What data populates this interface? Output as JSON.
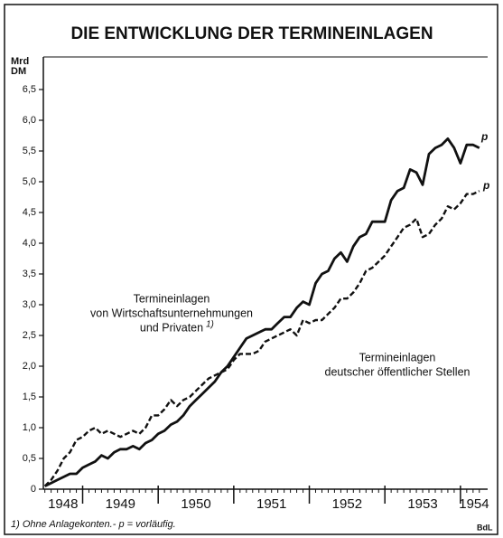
{
  "chart_data": {
    "type": "line",
    "title": "DIE ENTWICKLUNG DER TERMINEINLAGEN",
    "y_label": [
      "Mrd",
      "DM"
    ],
    "footnote": "1) Ohne Anlagekonten.- p = vorläufig.",
    "source": "BdL",
    "annotations": [
      {
        "lines": [
          "Termineinlagen",
          "von Wirtschaftsunternehmungen",
          "und Privaten"
        ],
        "marker": "1)"
      },
      {
        "lines": [
          "Termineinlagen",
          "deutscher öffentlicher Stellen"
        ]
      }
    ],
    "end_labels": [
      "p",
      "p"
    ],
    "xlim": [
      1948.48,
      1954.36
    ],
    "xticks": [
      1948,
      1949,
      1950,
      1951,
      1952,
      1953,
      1954
    ],
    "ylim": [
      0,
      6.5
    ],
    "yticks": [
      0,
      {
        "value": 0.5,
        "label": "0,5"
      },
      {
        "value": 1,
        "label": "1,0"
      },
      {
        "value": 1.5,
        "label": "1,5"
      },
      {
        "value": 2,
        "label": "2,0"
      },
      {
        "value": 2.5,
        "label": "2,5"
      },
      {
        "value": 3,
        "label": "3,0"
      },
      {
        "value": 3.5,
        "label": "3,5"
      },
      {
        "value": 4,
        "label": "4,0"
      },
      {
        "value": 4.5,
        "label": "4,5"
      },
      {
        "value": 5,
        "label": "5,0"
      },
      {
        "value": 5.5,
        "label": "5,5"
      },
      {
        "value": 6,
        "label": "6,0"
      },
      {
        "value": 6.5,
        "label": "6,5"
      }
    ],
    "grid": false,
    "x": [
      1948.5,
      1948.583,
      1948.667,
      1948.75,
      1948.833,
      1948.917,
      1949,
      1949.083,
      1949.167,
      1949.25,
      1949.333,
      1949.417,
      1949.5,
      1949.583,
      1949.667,
      1949.75,
      1949.833,
      1949.917,
      1950,
      1950.083,
      1950.167,
      1950.25,
      1950.333,
      1950.417,
      1950.5,
      1950.583,
      1950.667,
      1950.75,
      1950.833,
      1950.917,
      1951,
      1951.083,
      1951.167,
      1951.25,
      1951.333,
      1951.417,
      1951.5,
      1951.583,
      1951.667,
      1951.75,
      1951.833,
      1951.917,
      1952,
      1952.083,
      1952.167,
      1952.25,
      1952.333,
      1952.417,
      1952.5,
      1952.583,
      1952.667,
      1952.75,
      1952.833,
      1952.917,
      1953,
      1953.083,
      1953.167,
      1953.25,
      1953.333,
      1953.417,
      1953.5,
      1953.583,
      1953.667,
      1953.75,
      1953.833,
      1953.917,
      1954,
      1954.083,
      1954.167,
      1954.25
    ],
    "series": [
      {
        "color": "#111111",
        "dash": false,
        "values": [
          0.05,
          0.1,
          0.15,
          0.2,
          0.25,
          0.25,
          0.35,
          0.4,
          0.45,
          0.55,
          0.5,
          0.6,
          0.65,
          0.65,
          0.7,
          0.65,
          0.75,
          0.8,
          0.9,
          0.95,
          1.05,
          1.1,
          1.2,
          1.35,
          1.45,
          1.55,
          1.65,
          1.75,
          1.9,
          2.0,
          2.15,
          2.3,
          2.45,
          2.5,
          2.55,
          2.6,
          2.6,
          2.7,
          2.8,
          2.8,
          2.95,
          3.05,
          3.0,
          3.35,
          3.5,
          3.55,
          3.75,
          3.85,
          3.7,
          3.95,
          4.1,
          4.15,
          4.35,
          4.35,
          4.35,
          4.7,
          4.85,
          4.9,
          5.2,
          5.15,
          4.95,
          5.45,
          5.55,
          5.6,
          5.7,
          5.55,
          5.3,
          5.6,
          5.6,
          5.55
        ]
      },
      {
        "color": "#111111",
        "dash": true,
        "values": [
          0.05,
          0.15,
          0.3,
          0.5,
          0.6,
          0.8,
          0.85,
          0.95,
          1.0,
          0.9,
          0.95,
          0.9,
          0.85,
          0.9,
          0.95,
          0.9,
          1.0,
          1.2,
          1.2,
          1.3,
          1.45,
          1.35,
          1.45,
          1.5,
          1.6,
          1.7,
          1.8,
          1.85,
          1.9,
          1.95,
          2.1,
          2.2,
          2.2,
          2.2,
          2.25,
          2.4,
          2.45,
          2.5,
          2.55,
          2.6,
          2.5,
          2.75,
          2.7,
          2.75,
          2.75,
          2.85,
          2.95,
          3.1,
          3.1,
          3.2,
          3.35,
          3.55,
          3.6,
          3.7,
          3.8,
          3.95,
          4.1,
          4.25,
          4.3,
          4.4,
          4.1,
          4.15,
          4.3,
          4.4,
          4.6,
          4.55,
          4.65,
          4.8,
          4.8,
          4.85
        ]
      }
    ]
  }
}
